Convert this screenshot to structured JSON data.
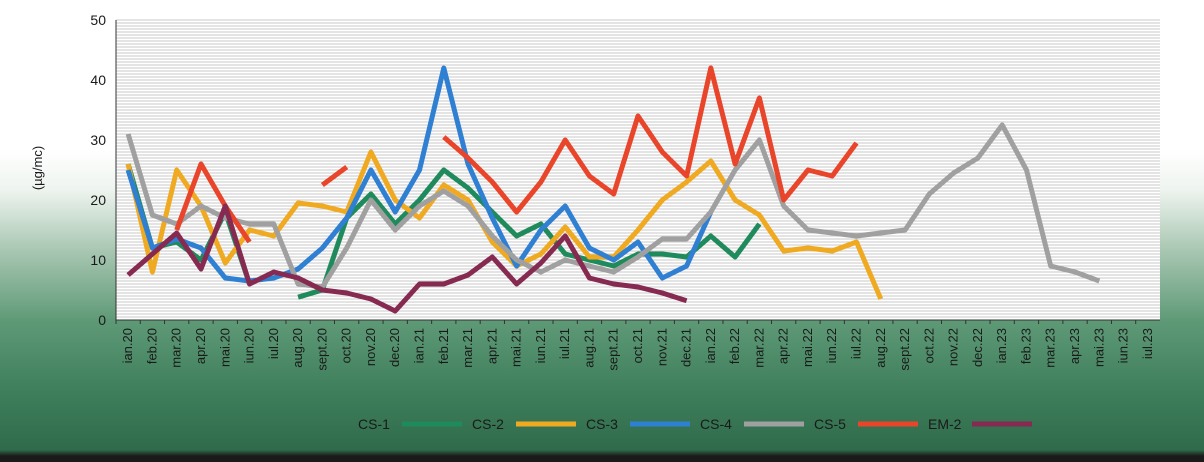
{
  "chart_data": {
    "type": "line",
    "ylabel": "(µg/mc)",
    "xlabel": "",
    "ylim": [
      0,
      50
    ],
    "yticks": [
      0,
      10,
      20,
      30,
      40,
      50
    ],
    "grid": "horizontal",
    "legend_position": "bottom",
    "categories": [
      "ian.20",
      "feb.20",
      "mar.20",
      "apr.20",
      "mai.20",
      "iun.20",
      "iul.20",
      "aug.20",
      "sept.20",
      "oct.20",
      "nov.20",
      "dec.20",
      "ian.21",
      "feb.21",
      "mar.21",
      "apr.21",
      "mai.21",
      "iun.21",
      "iul.21",
      "aug.21",
      "sept.21",
      "oct.21",
      "nov.21",
      "dec.21",
      "ian.22",
      "feb.22",
      "mar.22",
      "apr.22",
      "mai.22",
      "iun.22",
      "iul.22",
      "aug.22",
      "sept.22",
      "oct.22",
      "nov.22",
      "dec.22",
      "ian.23",
      "feb.23",
      "mar.23",
      "apr.23",
      "mai.23",
      "iun.23",
      "iul.23"
    ],
    "series": [
      {
        "name": "CS-1",
        "color": "#1f8a5b",
        "values": [
          26,
          12,
          13,
          10,
          18,
          6,
          null,
          3.8,
          5,
          17,
          21,
          16,
          20,
          25,
          22,
          18,
          14,
          16,
          11,
          10,
          9,
          11,
          11,
          10.5,
          14,
          10.5,
          16,
          null,
          null,
          null,
          null,
          null,
          null,
          null,
          null,
          null,
          null,
          null,
          null,
          null,
          null,
          null,
          null
        ]
      },
      {
        "name": "CS-2",
        "color": "#f0aa22",
        "values": [
          26,
          8,
          25,
          19,
          9.5,
          15,
          14,
          19.5,
          19,
          18,
          28,
          20,
          17,
          22.5,
          20,
          13,
          9,
          11,
          15.5,
          10.5,
          10.5,
          15,
          20,
          23,
          26.5,
          20,
          17.5,
          11.5,
          12,
          11.5,
          13,
          3.5,
          null,
          null,
          null,
          null,
          null,
          null,
          null,
          null,
          null,
          null,
          null
        ]
      },
      {
        "name": "CS-3",
        "color": "#2f7fd2",
        "values": [
          25,
          12,
          13.5,
          12,
          7,
          6.5,
          7,
          8.5,
          12,
          17,
          25,
          18,
          25,
          42,
          26,
          17,
          9,
          15,
          19,
          12,
          10,
          13,
          7,
          9,
          18,
          null,
          null,
          null,
          null,
          null,
          null,
          null,
          null,
          null,
          null,
          null,
          null,
          null,
          null,
          null,
          null,
          null,
          null
        ]
      },
      {
        "name": "CS-4",
        "color": "#a0a0a0",
        "values": [
          31,
          17.5,
          16,
          19,
          17,
          16,
          16,
          6,
          5.5,
          12,
          20,
          15,
          19,
          21.5,
          19,
          14,
          10,
          8,
          10,
          9,
          8,
          10.5,
          13.5,
          13.5,
          18,
          25,
          30,
          19,
          15,
          14.5,
          14,
          14.5,
          15,
          21,
          24.5,
          27,
          32.5,
          25,
          9,
          8,
          6.5,
          null,
          null
        ]
      },
      {
        "name": "CS-5",
        "color": "#e8452a",
        "values": [
          null,
          null,
          15,
          26,
          19,
          13,
          null,
          null,
          22.5,
          25.5,
          null,
          14.5,
          null,
          30.5,
          27,
          23,
          18,
          23,
          30,
          24,
          21,
          34,
          28,
          24,
          42,
          26,
          37,
          20,
          25,
          24,
          29.5,
          null,
          null,
          null,
          null,
          null,
          null,
          null,
          null,
          null,
          null,
          null,
          null
        ]
      },
      {
        "name": "EM-2",
        "color": "#862a52",
        "values": [
          7.5,
          11,
          14.5,
          8.5,
          19,
          6,
          8,
          7,
          5,
          4.5,
          3.5,
          1.5,
          6,
          6,
          7.5,
          10.5,
          6,
          9.5,
          14,
          7,
          6,
          5.5,
          4.5,
          3.2,
          null,
          null,
          null,
          null,
          null,
          null,
          null,
          null,
          null,
          null,
          null,
          null,
          null,
          null,
          null,
          null,
          null,
          null,
          null
        ]
      }
    ]
  }
}
